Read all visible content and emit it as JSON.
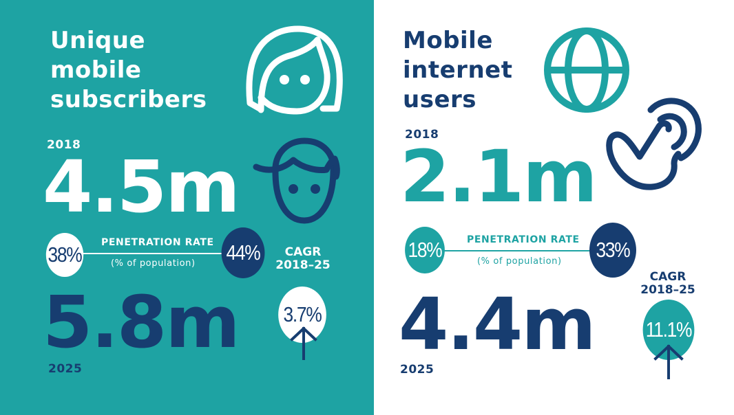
{
  "colors": {
    "teal": "#1ea3a3",
    "navy": "#173d70",
    "white": "#ffffff"
  },
  "left": {
    "title_lines": [
      "Unique",
      "mobile",
      "subscribers"
    ],
    "year_start": "2018",
    "value_start": "4.5m",
    "rate_start": "38%",
    "rate_label": "PENETRATION RATE",
    "rate_sub": "(% of population)",
    "rate_end": "44%",
    "cagr_lines": [
      "CAGR",
      "2018–25"
    ],
    "cagr_value": "3.7%",
    "value_end": "5.8m",
    "year_end": "2025",
    "icons": [
      "woman-face-icon",
      "man-face-icon",
      "up-arrow-icon"
    ]
  },
  "right": {
    "title_lines": [
      "Mobile",
      "internet",
      "users"
    ],
    "year_start": "2018",
    "value_start": "2.1m",
    "rate_start": "18%",
    "rate_label": "PENETRATION RATE",
    "rate_sub": "(% of population)",
    "rate_end": "33%",
    "cagr_lines": [
      "CAGR",
      "2018–25"
    ],
    "cagr_value": "11.1%",
    "value_end": "4.4m",
    "year_end": "2025",
    "icons": [
      "globe-icon",
      "tap-hand-icon",
      "up-arrow-icon"
    ]
  }
}
